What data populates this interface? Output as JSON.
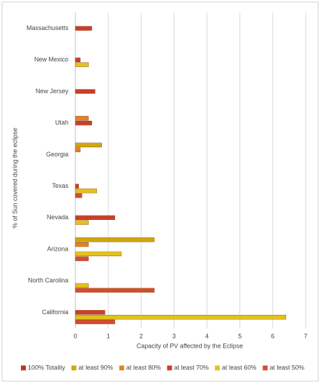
{
  "chart_data": {
    "type": "bar",
    "orientation": "horizontal",
    "x_label": "Capacity of PV affected by the Eclipse",
    "y_label": "% of Sun covered during the eclipse",
    "categories": [
      "California",
      "North Carolina",
      "Arizona",
      "Nevada",
      "Texas",
      "Georgia",
      "Utah",
      "New Jersey",
      "New Mexico",
      "Massachusetts"
    ],
    "series": [
      {
        "name": "100% Totality",
        "color": "#b8352a",
        "values": [
          null,
          null,
          null,
          null,
          null,
          null,
          null,
          null,
          null,
          null
        ]
      },
      {
        "name": "at least 90%",
        "color": "#cfa70c",
        "values": [
          null,
          null,
          2.4,
          null,
          null,
          0.8,
          null,
          null,
          null,
          null
        ]
      },
      {
        "name": "at least 80%",
        "color": "#e0841e",
        "values": [
          null,
          null,
          0.4,
          null,
          null,
          0.15,
          0.4,
          null,
          null,
          null
        ]
      },
      {
        "name": "at least 70%",
        "color": "#c8402a",
        "values": [
          0.9,
          null,
          null,
          1.2,
          0.1,
          null,
          0.5,
          0.6,
          0.15,
          0.5
        ]
      },
      {
        "name": "at least 60%",
        "color": "#e3c21c",
        "values": [
          6.4,
          0.4,
          1.4,
          0.4,
          0.65,
          null,
          null,
          null,
          0.4,
          null
        ]
      },
      {
        "name": "at least 50%",
        "color": "#d0502a",
        "values": [
          1.2,
          2.4,
          0.4,
          null,
          0.2,
          null,
          null,
          null,
          null,
          null
        ]
      }
    ],
    "xlim": [
      0,
      7
    ],
    "xticks": [
      0,
      1,
      2,
      3,
      4,
      5,
      6,
      7
    ],
    "grid": true,
    "legend": "bottom"
  }
}
